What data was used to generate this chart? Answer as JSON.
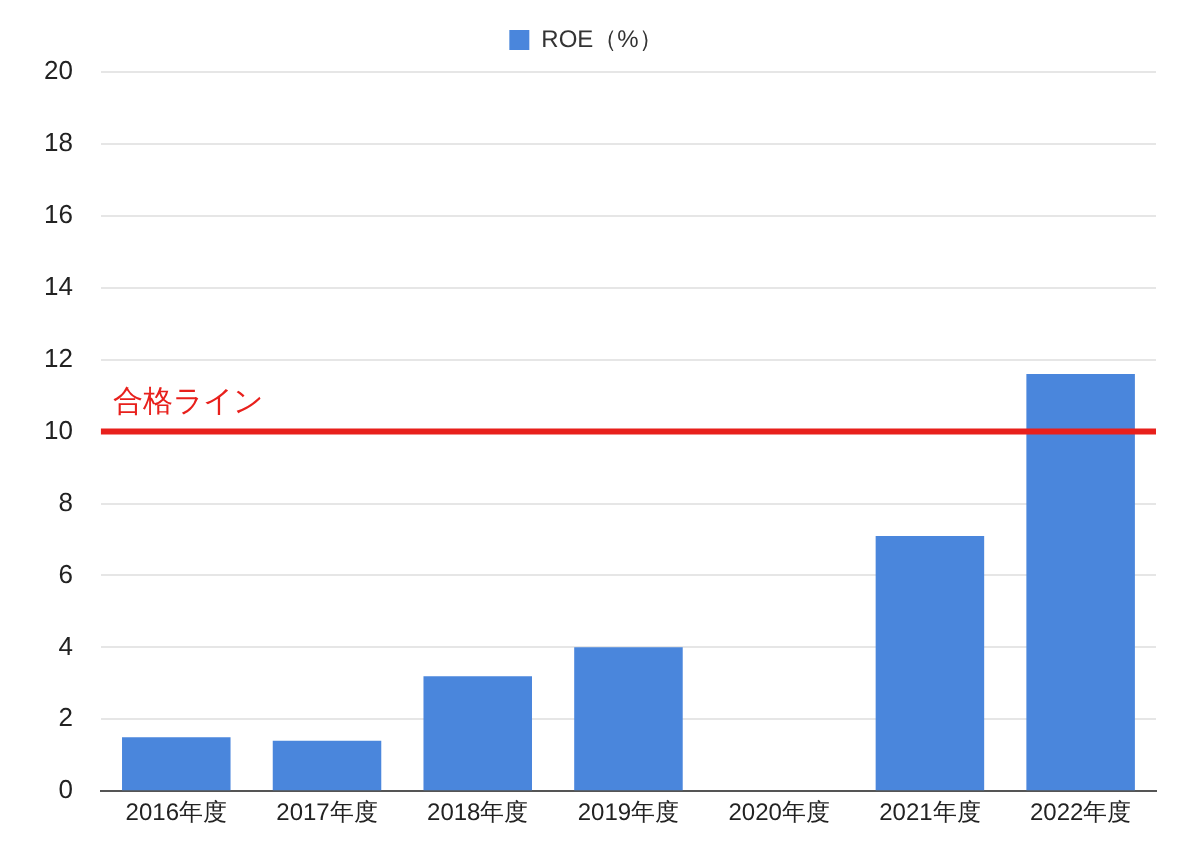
{
  "chart_data": {
    "type": "bar",
    "categories": [
      "2016年度",
      "2017年度",
      "2018年度",
      "2019年度",
      "2020年度",
      "2021年度",
      "2022年度"
    ],
    "series": [
      {
        "name": "ROE（%）",
        "color": "#4a86dc",
        "values": [
          1.5,
          1.4,
          3.2,
          4.0,
          null,
          7.1,
          11.6
        ]
      }
    ],
    "ylim": [
      0,
      20
    ],
    "yticks": [
      0,
      2,
      4,
      6,
      8,
      10,
      12,
      14,
      16,
      18,
      20
    ],
    "grid": "y",
    "legend": "top",
    "ref_lines": [
      {
        "axis": "y",
        "value": 10,
        "label": "合格ライン",
        "color": "#e8201c"
      }
    ]
  }
}
